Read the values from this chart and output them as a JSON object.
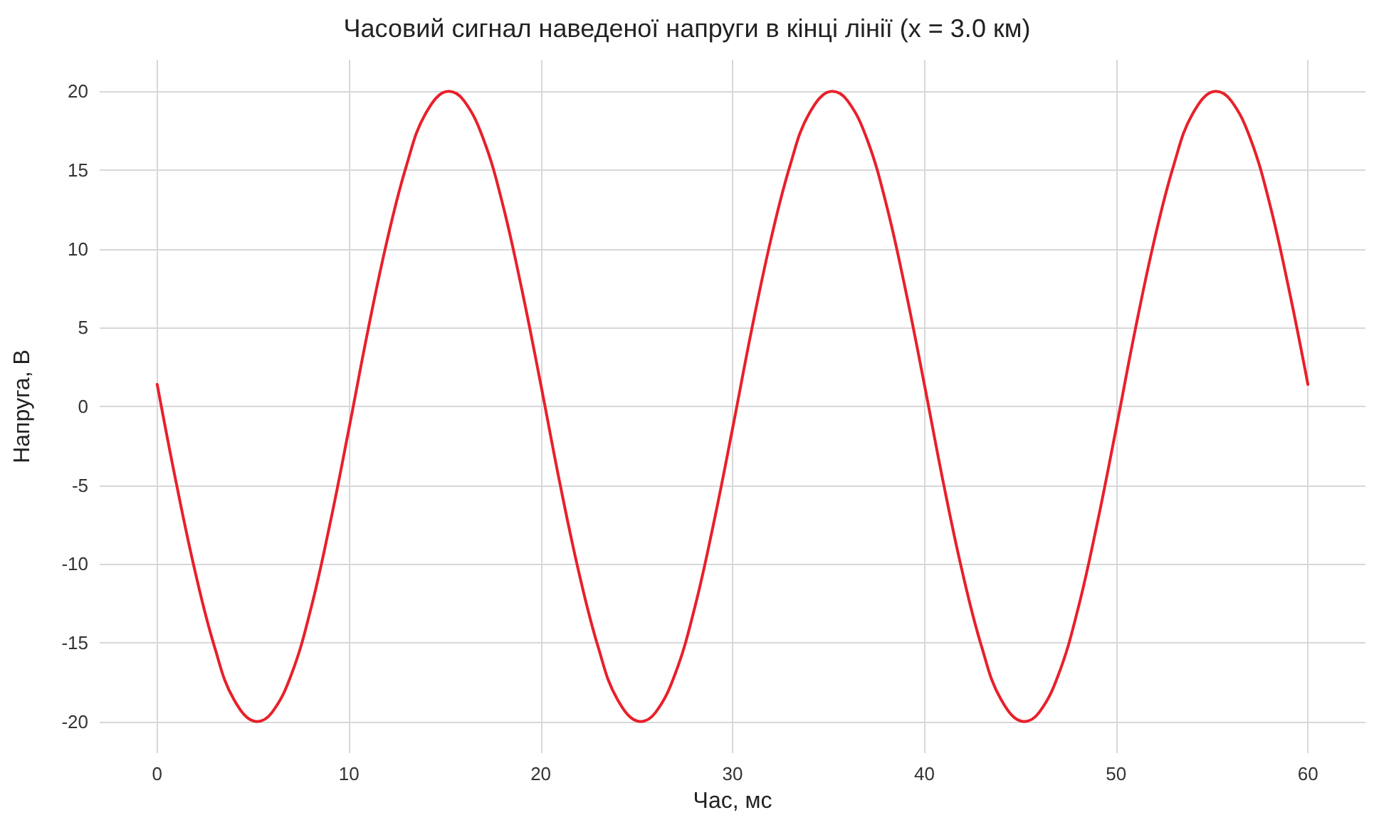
{
  "chart_data": {
    "type": "line",
    "title": "Часовий сигнал наведеної напруги в кінці лінії (x = 3.0 км)",
    "xlabel": "Час, мс",
    "ylabel": "Напруга, В",
    "x": [
      0,
      1,
      2,
      3,
      4,
      5.2,
      6,
      7,
      8,
      9,
      10,
      11,
      12,
      13,
      14,
      15.2,
      16,
      17,
      18,
      19,
      20,
      21,
      22,
      23,
      24,
      25.2,
      26,
      27,
      28,
      29,
      30,
      31,
      32,
      33,
      34,
      35.2,
      36,
      37,
      38,
      39,
      40,
      41,
      42,
      43,
      44,
      45.2,
      46,
      47,
      48,
      49,
      50,
      51,
      52,
      53,
      54,
      55.2,
      56,
      57,
      58,
      59,
      60
    ],
    "series": [
      {
        "color": "#e8202a",
        "values": [
          1.4,
          -4.9,
          -10.6,
          -15.3,
          -18.6,
          -20,
          -19.4,
          -17,
          -12.9,
          -7.5,
          -1.4,
          4.9,
          10.6,
          15.3,
          18.6,
          20,
          19.4,
          17,
          12.9,
          7.5,
          1.4,
          -4.9,
          -10.6,
          -15.3,
          -18.6,
          -20,
          -19.4,
          -17,
          -12.9,
          -7.5,
          -1.4,
          4.9,
          10.6,
          15.3,
          18.6,
          20,
          19.4,
          17,
          12.9,
          7.5,
          1.4,
          -4.9,
          -10.6,
          -15.3,
          -18.6,
          -20,
          -19.4,
          -17,
          -12.9,
          -7.5,
          -1.4,
          4.9,
          10.6,
          15.3,
          18.6,
          20,
          19.4,
          17,
          12.9,
          7.5,
          1.4
        ]
      }
    ],
    "xlim": [
      -3,
      63
    ],
    "ylim": [
      -22,
      22
    ],
    "xticks": [
      0,
      10,
      20,
      30,
      40,
      50,
      60
    ],
    "yticks": [
      -20,
      -15,
      -10,
      -5,
      0,
      5,
      10,
      15,
      20
    ],
    "grid": true,
    "marker": "none",
    "line_style": "solid"
  }
}
